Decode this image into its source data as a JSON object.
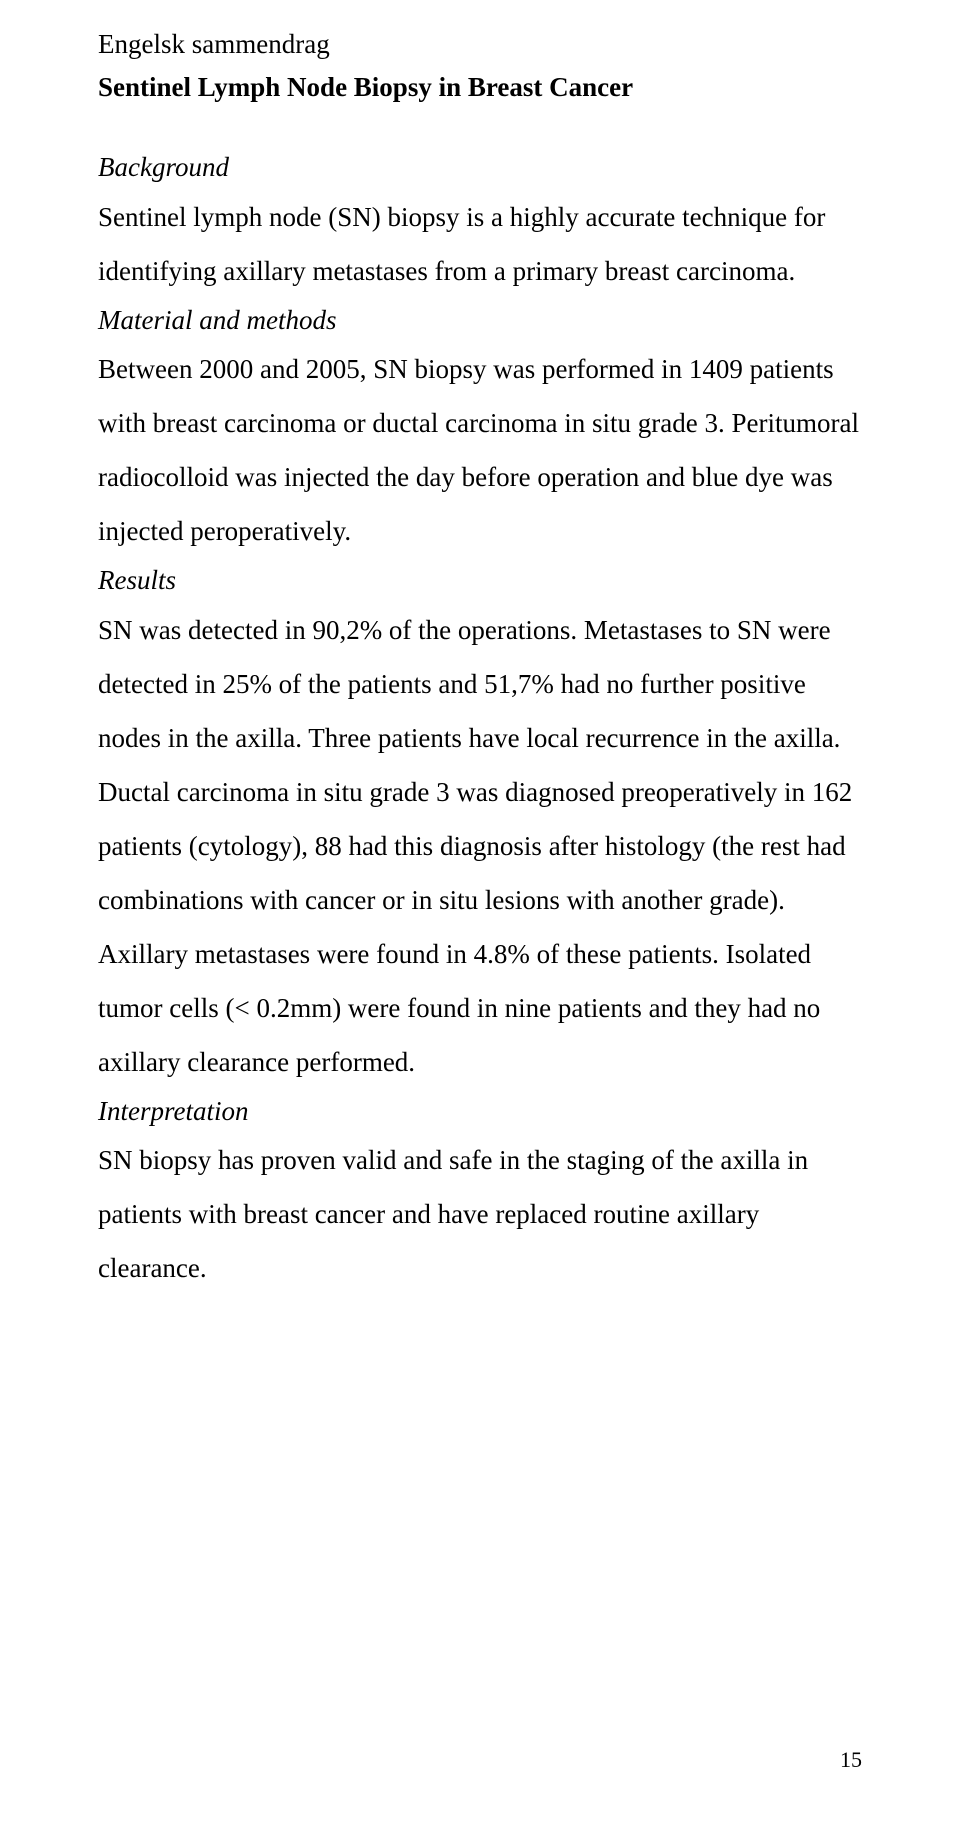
{
  "doc": {
    "heading_norwegian": "Engelsk sammendrag",
    "heading_title": "Sentinel Lymph Node Biopsy in Breast Cancer",
    "sections": {
      "background_label": "Background",
      "background_text": "Sentinel lymph node (SN) biopsy is a highly accurate technique for identifying axillary metastases from a primary breast carcinoma.",
      "methods_label": "Material and methods",
      "methods_text": "Between 2000 and 2005, SN biopsy was performed in 1409 patients with breast carcinoma or ductal carcinoma in situ grade 3. Peritumoral radiocolloid was injected the day before operation and blue dye was injected peroperatively.",
      "results_label": "Results",
      "results_text": "SN was detected in 90,2% of the operations. Metastases to SN were detected in 25% of the patients and 51,7% had no further positive nodes in the axilla. Three patients have local recurrence in the axilla. Ductal carcinoma in situ grade 3 was diagnosed preoperatively in 162 patients (cytology), 88 had this diagnosis after histology (the rest had combinations with cancer or in situ lesions with another grade). Axillary metastases were found in 4.8% of these patients. Isolated tumor cells (< 0.2mm) were found in nine patients and they had no axillary clearance performed.",
      "interpretation_label": "Interpretation",
      "interpretation_text": "SN biopsy has proven valid and safe in the staging of the axilla in patients with breast cancer and have replaced routine axillary clearance."
    },
    "page_number": "15"
  }
}
